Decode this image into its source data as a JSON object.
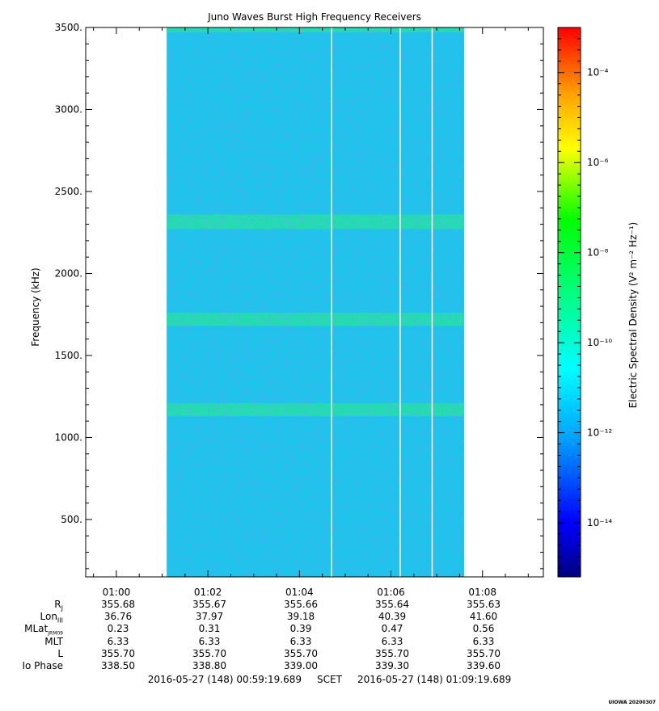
{
  "chart_data": {
    "type": "heatmap",
    "title": "Juno Waves Burst High Frequency Receivers",
    "ylabel": "Frequency (kHz)",
    "xlabel": "",
    "x_ticks": [
      "01:00",
      "01:02",
      "01:04",
      "01:06",
      "01:08"
    ],
    "y_ticks": [
      "500.",
      "1000.",
      "1500.",
      "2000.",
      "2500.",
      "3000.",
      "3500."
    ],
    "ylim": [
      150,
      3500
    ],
    "xlim_minutes": [
      59.33,
      69.33
    ],
    "data_span_minutes": [
      61.1,
      67.6
    ],
    "gap_lines_minutes": [
      64.7,
      66.2,
      66.9
    ],
    "bright_bands_khz": [
      [
        2270,
        2360
      ],
      [
        1680,
        1760
      ],
      [
        1130,
        1210
      ],
      [
        3470,
        3500
      ]
    ],
    "colorbar": {
      "label": "Electric Spectral Density (V² m⁻² Hz⁻¹)",
      "ticks": [
        "10⁻¹⁴",
        "10⁻¹²",
        "10⁻¹⁰",
        "10⁻⁸",
        "10⁻⁶",
        "10⁻⁴"
      ],
      "exponents": [
        -14,
        -12,
        -10,
        -8,
        -6,
        -4
      ],
      "range_exp": [
        -15.2,
        -3.0
      ]
    }
  },
  "ephemeris": {
    "labels": {
      "rj": "R",
      "rj_sub": "J",
      "lon": "Lon",
      "lon_sub": "III",
      "mlat": "MLat",
      "mlat_sub": "JRM09",
      "mlt": "MLT",
      "l": "L",
      "io": "Io Phase"
    },
    "columns": [
      {
        "rj": "355.68",
        "lon": "36.76",
        "mlat": "0.23",
        "mlt": "6.33",
        "l": "355.70",
        "io": "338.50"
      },
      {
        "rj": "355.67",
        "lon": "37.97",
        "mlat": "0.31",
        "mlt": "6.33",
        "l": "355.70",
        "io": "338.80"
      },
      {
        "rj": "355.66",
        "lon": "39.18",
        "mlat": "0.39",
        "mlt": "6.33",
        "l": "355.70",
        "io": "339.00"
      },
      {
        "rj": "355.64",
        "lon": "40.39",
        "mlat": "0.47",
        "mlt": "6.33",
        "l": "355.70",
        "io": "339.30"
      },
      {
        "rj": "355.63",
        "lon": "41.60",
        "mlat": "0.56",
        "mlt": "6.33",
        "l": "355.70",
        "io": "339.60"
      }
    ]
  },
  "footer": {
    "scet": "2016-05-27 (148) 00:59:19.689     SCET     2016-05-27 (148) 01:09:19.689",
    "credit": "UIOWA 20200307"
  }
}
